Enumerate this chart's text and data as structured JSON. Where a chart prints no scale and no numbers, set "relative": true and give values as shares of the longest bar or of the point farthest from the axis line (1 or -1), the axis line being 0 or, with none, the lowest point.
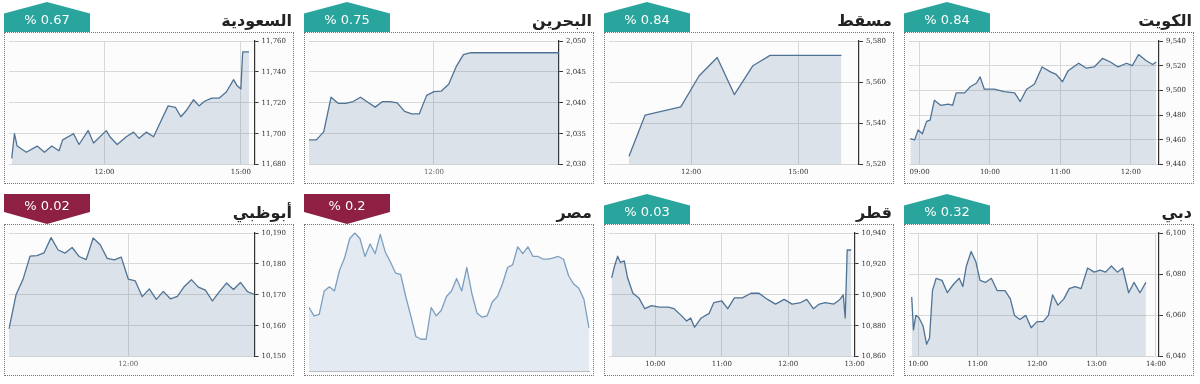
{
  "chart_data": [
    {
      "type": "area",
      "title": "السعودية",
      "subtitle": "% 0.67",
      "grid": true,
      "xlim": [
        9.9,
        15.3
      ],
      "xticks": [
        {
          "value": 12,
          "label": "12:00"
        },
        {
          "value": 15,
          "label": "15:00"
        }
      ],
      "ylim": [
        11680,
        11760
      ],
      "yticks": [
        {
          "value": 11680,
          "label": "11,680"
        },
        {
          "value": 11700,
          "label": "11,700"
        },
        {
          "value": 11720,
          "label": "11,720"
        },
        {
          "value": 11740,
          "label": "11,740"
        },
        {
          "value": 11760,
          "label": "11,760"
        }
      ],
      "x": [
        9.96,
        10.02,
        10.08,
        10.28,
        10.52,
        10.68,
        10.84,
        11.0,
        11.08,
        11.32,
        11.44,
        11.64,
        11.76,
        12.04,
        12.12,
        12.28,
        12.48,
        12.64,
        12.76,
        12.92,
        13.08,
        13.24,
        13.4,
        13.56,
        13.68,
        13.8,
        13.96,
        14.08,
        14.2,
        14.36,
        14.52,
        14.68,
        14.84,
        14.92,
        15.0,
        15.04,
        15.18
      ],
      "series": [
        {
          "color": "#4f7396",
          "values": [
            11684,
            11700,
            11692,
            11688,
            11692,
            11688,
            11692,
            11689,
            11696,
            11700,
            11693,
            11702,
            11694,
            11702,
            11698,
            11693,
            11698,
            11701,
            11697,
            11701,
            11698,
            11708,
            11718,
            11717,
            11711,
            11715,
            11722,
            11718,
            11721,
            11723,
            11723,
            11727,
            11735,
            11731,
            11729,
            11753,
            11753
          ]
        }
      ]
    },
    {
      "type": "area",
      "title": "البحرين",
      "subtitle": "% 0.75",
      "grid": true,
      "ylim": [
        2030,
        2050
      ],
      "yticks": [
        {
          "value": 2030,
          "label": "2,030"
        },
        {
          "value": 2035,
          "label": "2,035"
        },
        {
          "value": 2040,
          "label": "2,040"
        },
        {
          "value": 2045,
          "label": "2,045"
        },
        {
          "value": 2050,
          "label": "2,050"
        }
      ],
      "categories": [
        null,
        null,
        null,
        null,
        null,
        null,
        null,
        null,
        null,
        null,
        null,
        null,
        null,
        null,
        null,
        null,
        null,
        "12:00",
        null,
        null,
        null,
        null,
        null,
        null,
        null,
        null,
        null,
        null,
        null,
        null,
        null,
        null,
        null,
        null,
        null
      ],
      "series": [
        {
          "color": "#4f7396",
          "values": [
            2034.0,
            2034.0,
            2035.3,
            2040.9,
            2039.9,
            2039.9,
            2040.2,
            2040.9,
            2040.1,
            2039.3,
            2040.2,
            2040.2,
            2040.0,
            2038.6,
            2038.2,
            2038.2,
            2041.2,
            2041.8,
            2041.9,
            2043.0,
            2045.8,
            2047.8,
            2048.1,
            2048.1,
            2048.1,
            2048.1,
            2048.1,
            2048.1,
            2048.1,
            2048.1,
            2048.1,
            2048.1,
            2048.1,
            2048.1,
            2048.1
          ]
        }
      ]
    },
    {
      "type": "area",
      "title": "مسقط",
      "subtitle": "% 0.84",
      "grid": true,
      "xlim": [
        9.7,
        16.7
      ],
      "xticks": [
        {
          "value": 12,
          "label": "12:00"
        },
        {
          "value": 15,
          "label": "15:00"
        }
      ],
      "ylim": [
        5520,
        5580
      ],
      "yticks": [
        {
          "value": 5520,
          "label": "5,520"
        },
        {
          "value": 5540,
          "label": "5,540"
        },
        {
          "value": 5560,
          "label": "5,560"
        },
        {
          "value": 5580,
          "label": "5,580"
        }
      ],
      "x": [
        10.26,
        10.71,
        11.71,
        12.22,
        12.73,
        13.21,
        13.73,
        14.21,
        16.21
      ],
      "series": [
        {
          "color": "#4f7396",
          "values": [
            5524,
            5544,
            5548,
            5563,
            5572,
            5554,
            5568,
            5573,
            5573
          ]
        }
      ]
    },
    {
      "type": "area",
      "title": "الكويت",
      "subtitle": "% 0.84",
      "grid": true,
      "xlim": [
        8.85,
        12.4
      ],
      "xticks": [
        {
          "value": 9,
          "label": "09:00"
        },
        {
          "value": 10,
          "label": "10:00"
        },
        {
          "value": 11,
          "label": "11:00"
        },
        {
          "value": 12,
          "label": "12:00"
        }
      ],
      "ylim": [
        9440,
        9540
      ],
      "yticks": [
        {
          "value": 9440,
          "label": "9,440"
        },
        {
          "value": 9460,
          "label": "9,460"
        },
        {
          "value": 9480,
          "label": "9,480"
        },
        {
          "value": 9500,
          "label": "9,500"
        },
        {
          "value": 9520,
          "label": "9,520"
        },
        {
          "value": 9540,
          "label": "9,540"
        }
      ],
      "x": [
        8.87,
        8.93,
        8.98,
        9.04,
        9.1,
        9.15,
        9.21,
        9.3,
        9.41,
        9.47,
        9.52,
        9.64,
        9.72,
        9.81,
        9.86,
        9.92,
        10.06,
        10.2,
        10.35,
        10.43,
        10.52,
        10.63,
        10.74,
        10.86,
        10.94,
        11.03,
        11.11,
        11.26,
        11.37,
        11.48,
        11.6,
        11.71,
        11.82,
        11.94,
        12.02,
        12.11,
        12.22,
        12.31,
        12.36
      ],
      "series": [
        {
          "color": "#4f7396",
          "values": [
            9461,
            9460,
            9468,
            9465,
            9475,
            9476,
            9492,
            9488,
            9489,
            9488,
            9498,
            9498,
            9503,
            9506,
            9511,
            9501,
            9501,
            9499,
            9498,
            9491,
            9501,
            9505,
            9519,
            9515,
            9513,
            9507,
            9516,
            9522,
            9518,
            9519,
            9526,
            9523,
            9519,
            9522,
            9520,
            9529,
            9524,
            9521,
            9523
          ]
        }
      ]
    },
    {
      "type": "area",
      "title": "أبوظبي",
      "subtitle": "% 0.02",
      "grid": true,
      "ylim": [
        10150,
        10190
      ],
      "yticks": [
        {
          "value": 10150,
          "label": "10,150"
        },
        {
          "value": 10160,
          "label": "10,160"
        },
        {
          "value": 10170,
          "label": "10,170"
        },
        {
          "value": 10180,
          "label": "10,180"
        },
        {
          "value": 10190,
          "label": "10,190"
        }
      ],
      "categories": [
        null,
        null,
        null,
        null,
        null,
        null,
        null,
        null,
        null,
        null,
        null,
        null,
        null,
        null,
        null,
        null,
        null,
        "12:00",
        null,
        null,
        null,
        null,
        null,
        null,
        null,
        null,
        null,
        null,
        null,
        null,
        null,
        null,
        null,
        null,
        null,
        null
      ],
      "series": [
        {
          "color": "#4f7396",
          "values": [
            10159,
            10170,
            10175,
            10182.5,
            10182.7,
            10183.6,
            10188.5,
            10184.5,
            10183.5,
            10185.3,
            10182.4,
            10181.4,
            10188.4,
            10186.2,
            10181.8,
            10181.3,
            10182.2,
            10175.1,
            10174.5,
            10169.4,
            10171.9,
            10168.5,
            10171.1,
            10168.7,
            10169.5,
            10172.7,
            10174.9,
            10172.5,
            10171.5,
            10168,
            10171,
            10173.8,
            10171.7,
            10174,
            10171,
            10170.1
          ]
        }
      ]
    },
    {
      "type": "area",
      "title": "مصر",
      "subtitle": "% 0.2",
      "relative": true,
      "tick_labels": false,
      "categories": [
        null,
        null,
        null,
        null,
        null,
        null,
        null,
        null,
        null,
        null,
        null,
        null,
        null,
        null,
        null,
        null,
        null,
        null,
        null,
        null,
        null,
        null,
        null,
        null,
        null,
        null,
        null,
        null,
        null,
        null,
        null,
        null,
        null,
        null,
        null,
        null,
        null,
        null,
        null,
        null,
        null,
        null,
        null,
        null,
        null,
        null,
        null,
        null,
        null,
        null,
        null,
        null,
        null,
        null,
        null,
        null
      ],
      "series": [
        {
          "color": "#7c9fbf",
          "values": [
            0.46,
            0.4,
            0.41,
            0.58,
            0.61,
            0.58,
            0.73,
            0.82,
            0.96,
            1,
            0.96,
            0.83,
            0.92,
            0.85,
            0.99,
            0.86,
            0.79,
            0.71,
            0.7,
            0.54,
            0.4,
            0.25,
            0.23,
            0.23,
            0.46,
            0.4,
            0.44,
            0.54,
            0.58,
            0.67,
            0.58,
            0.75,
            0.56,
            0.42,
            0.39,
            0.4,
            0.5,
            0.54,
            0.63,
            0.75,
            0.77,
            0.9,
            0.85,
            0.9,
            0.83,
            0.83,
            0.81,
            0.81,
            0.82,
            0.83,
            0.81,
            0.69,
            0.63,
            0.6,
            0.52,
            0.31
          ]
        }
      ]
    },
    {
      "type": "area",
      "title": "قطر",
      "subtitle": "% 0.03",
      "grid": true,
      "xlim": [
        9.3,
        13.0
      ],
      "xticks": [
        {
          "value": 10,
          "label": "10:00"
        },
        {
          "value": 11,
          "label": "11:00"
        },
        {
          "value": 12,
          "label": "12:00"
        },
        {
          "value": 13,
          "label": "13:00"
        }
      ],
      "ylim": [
        10860,
        10940
      ],
      "yticks": [
        {
          "value": 10860,
          "label": "10,860"
        },
        {
          "value": 10880,
          "label": "10,880"
        },
        {
          "value": 10900,
          "label": "10,900"
        },
        {
          "value": 10920,
          "label": "10,920"
        },
        {
          "value": 10940,
          "label": "10,940"
        }
      ],
      "x": [
        9.34,
        9.38,
        9.43,
        9.47,
        9.53,
        9.58,
        9.66,
        9.75,
        9.84,
        9.94,
        10.06,
        10.19,
        10.28,
        10.38,
        10.47,
        10.53,
        10.59,
        10.69,
        10.81,
        10.88,
        11.0,
        11.09,
        11.19,
        11.31,
        11.44,
        11.56,
        11.69,
        11.81,
        11.94,
        12.06,
        12.19,
        12.28,
        12.38,
        12.47,
        12.56,
        12.69,
        12.78,
        12.83,
        12.86,
        12.89,
        12.95
      ],
      "series": [
        {
          "color": "#4f7396",
          "values": [
            10911,
            10918,
            10925,
            10921,
            10922,
            10911,
            10901,
            10898,
            10891,
            10893,
            10892,
            10892,
            10891,
            10887,
            10883,
            10885,
            10879,
            10885,
            10888,
            10895,
            10896,
            10891,
            10898,
            10898,
            10901,
            10901,
            10897,
            10894,
            10897,
            10894,
            10895,
            10897,
            10891,
            10894,
            10895,
            10894,
            10897,
            10900,
            10885,
            10929,
            10929
          ]
        }
      ]
    },
    {
      "type": "area",
      "title": "دبي",
      "subtitle": "% 0.32",
      "grid": true,
      "xlim": [
        9.85,
        14.05
      ],
      "xticks": [
        {
          "value": 10,
          "label": "10:00"
        },
        {
          "value": 11,
          "label": "11:00"
        },
        {
          "value": 12,
          "label": "12:00"
        },
        {
          "value": 13,
          "label": "13:00"
        },
        {
          "value": 14,
          "label": "14:00"
        }
      ],
      "ylim": [
        6040,
        6100
      ],
      "yticks": [
        {
          "value": 6040,
          "label": "6,040"
        },
        {
          "value": 6060,
          "label": "6,060"
        },
        {
          "value": 6080,
          "label": "6,080"
        },
        {
          "value": 6100,
          "label": "6,100"
        }
      ],
      "x": [
        9.89,
        9.92,
        9.96,
        10.01,
        10.08,
        10.14,
        10.19,
        10.24,
        10.3,
        10.4,
        10.49,
        10.59,
        10.69,
        10.75,
        10.81,
        10.89,
        10.97,
        11.04,
        11.13,
        11.23,
        11.33,
        11.46,
        11.55,
        11.62,
        11.71,
        11.81,
        11.9,
        12.0,
        12.1,
        12.19,
        12.26,
        12.35,
        12.45,
        12.54,
        12.64,
        12.74,
        12.85,
        12.96,
        13.06,
        13.15,
        13.25,
        13.35,
        13.44,
        13.54,
        13.63,
        13.73,
        13.83
      ],
      "series": [
        {
          "color": "#4f7396",
          "values": [
            6069,
            6053,
            6060,
            6059,
            6055,
            6046,
            6049,
            6072,
            6078,
            6077,
            6071,
            6075,
            6078,
            6074,
            6084,
            6091,
            6086,
            6077,
            6076,
            6078,
            6072,
            6072,
            6068,
            6060,
            6058,
            6060,
            6054,
            6057,
            6057,
            6060,
            6070,
            6065,
            6068,
            6073,
            6074,
            6073,
            6083,
            6081,
            6082,
            6081,
            6084,
            6081,
            6083,
            6071,
            6076,
            6071,
            6076
          ]
        }
      ]
    }
  ]
}
